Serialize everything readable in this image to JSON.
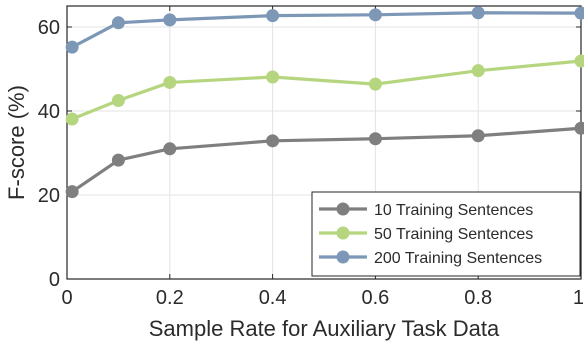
{
  "chart_data": {
    "type": "line",
    "title": "",
    "xlabel": "Sample Rate for Auxiliary Task Data",
    "ylabel": "F-score (%)",
    "xlim": [
      0,
      1
    ],
    "ylim": [
      0,
      65
    ],
    "xticks": [
      0,
      0.2,
      0.4,
      0.6,
      0.8,
      1
    ],
    "xtick_labels": [
      "0",
      "0.2",
      "0.4",
      "0.6",
      "0.8",
      "1"
    ],
    "yticks": [
      0,
      20,
      40,
      60
    ],
    "ytick_labels": [
      "0",
      "20",
      "40",
      "60"
    ],
    "grid": true,
    "legend_position": "bottom-right",
    "x": [
      0.01,
      0.1,
      0.2,
      0.4,
      0.6,
      0.8,
      1.0
    ],
    "series": [
      {
        "name": "10 Training Sentences",
        "color": "#7f7f7f",
        "values": [
          20.8,
          28.3,
          31.0,
          32.9,
          33.4,
          34.1,
          35.9
        ]
      },
      {
        "name": "50 Training Sentences",
        "color": "#b5d67f",
        "values": [
          38.1,
          42.5,
          46.8,
          48.1,
          46.4,
          49.6,
          51.9
        ]
      },
      {
        "name": "200 Training Sentences",
        "color": "#7d97b6",
        "values": [
          55.2,
          61.0,
          61.7,
          62.7,
          62.9,
          63.4,
          63.3
        ]
      }
    ]
  }
}
